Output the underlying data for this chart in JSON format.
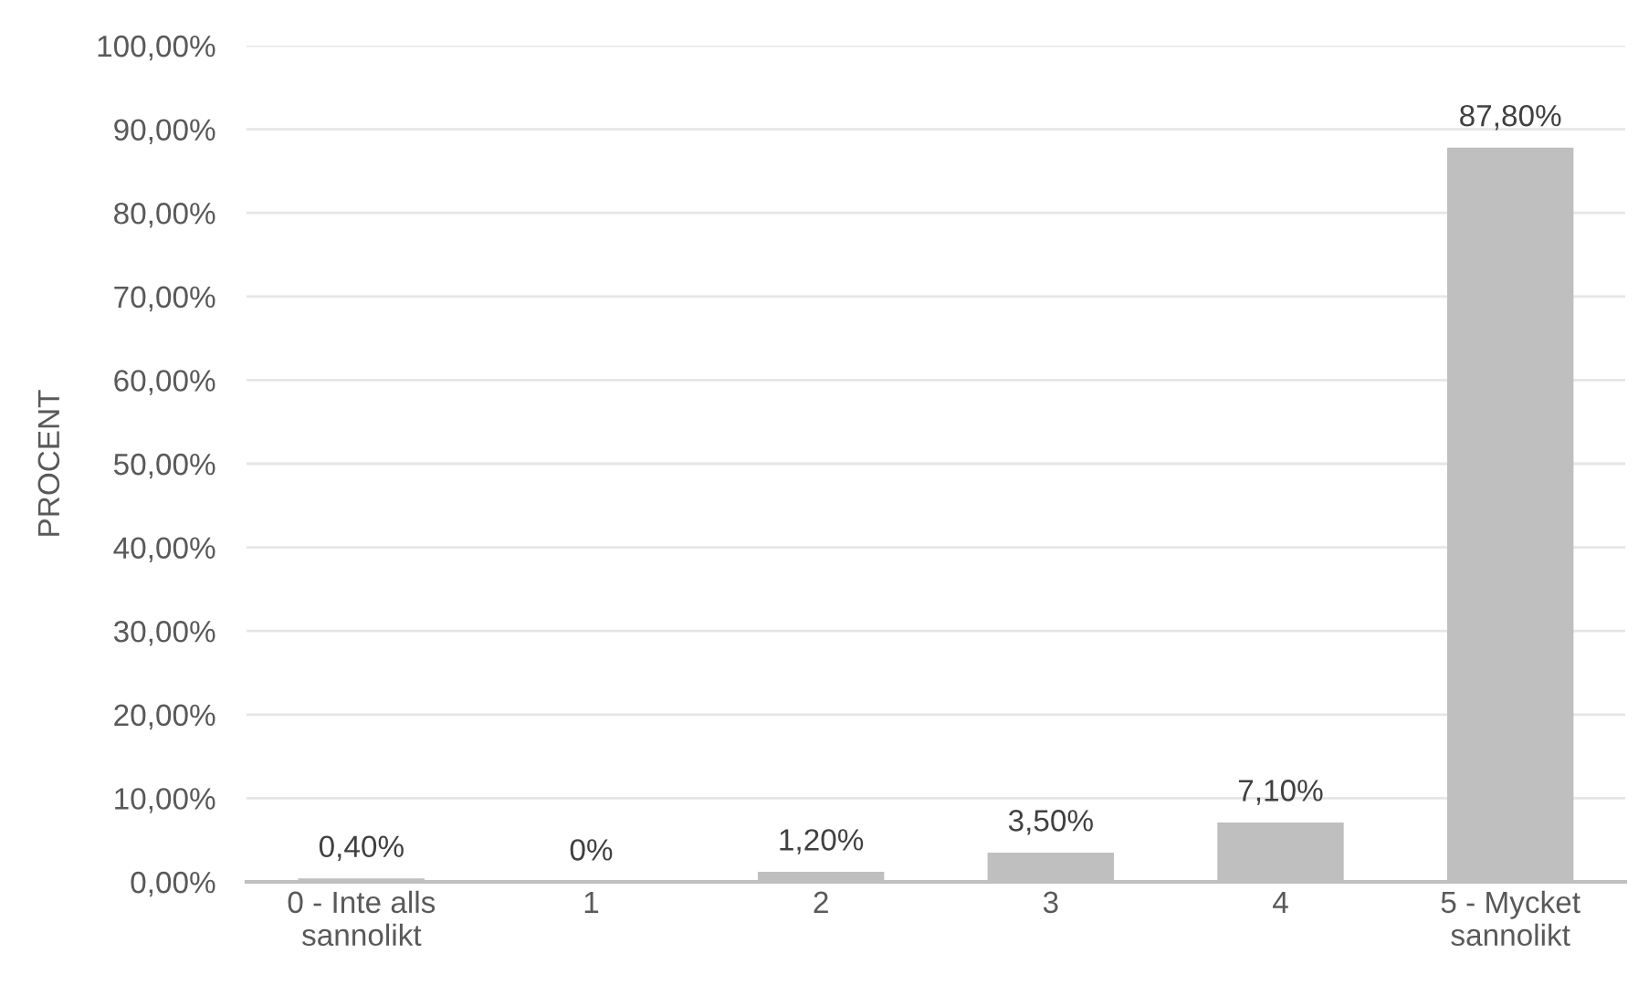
{
  "chart_data": {
    "type": "bar",
    "ylabel": "PROCENT",
    "categories": [
      "0 - Inte alls\nsannolikt",
      "1",
      "2",
      "3",
      "4",
      "5 - Mycket\nsannolikt"
    ],
    "values": [
      0.4,
      0,
      1.2,
      3.5,
      7.1,
      87.8
    ],
    "value_labels": [
      "0,40%",
      "0%",
      "1,20%",
      "3,50%",
      "7,10%",
      "87,80%"
    ],
    "color": "#bfbfbf",
    "ylim": [
      0,
      100
    ],
    "yticks": [
      {
        "value": 0,
        "label": "0,00%"
      },
      {
        "value": 10,
        "label": "10,00%"
      },
      {
        "value": 20,
        "label": "20,00%"
      },
      {
        "value": 30,
        "label": "30,00%"
      },
      {
        "value": 40,
        "label": "40,00%"
      },
      {
        "value": 50,
        "label": "50,00%"
      },
      {
        "value": 60,
        "label": "60,00%"
      },
      {
        "value": 70,
        "label": "70,00%"
      },
      {
        "value": 80,
        "label": "80,00%"
      },
      {
        "value": 90,
        "label": "90,00%"
      },
      {
        "value": 100,
        "label": "100,00%"
      }
    ],
    "grid": "y"
  }
}
